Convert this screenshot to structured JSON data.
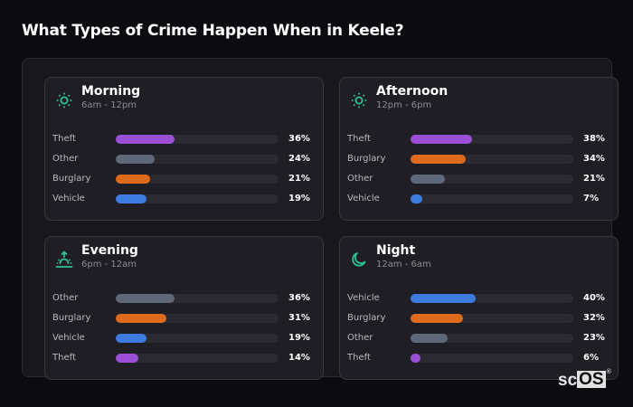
{
  "title": "What Types of Crime Happen When in Keele?",
  "colors": {
    "Theft": "#9b4fd6",
    "Other": "#5f6878",
    "Burglary": "#e06a1c",
    "Vehicle": "#3d7be0",
    "accent": "#2ec295"
  },
  "cards": [
    {
      "title": "Morning",
      "subtitle": "6am - 12pm",
      "icon": "sun-icon",
      "rows": [
        {
          "label": "Theft",
          "value": 36,
          "display": "36%"
        },
        {
          "label": "Other",
          "value": 24,
          "display": "24%"
        },
        {
          "label": "Burglary",
          "value": 21,
          "display": "21%"
        },
        {
          "label": "Vehicle",
          "value": 19,
          "display": "19%"
        }
      ]
    },
    {
      "title": "Afternoon",
      "subtitle": "12pm - 6pm",
      "icon": "sun-icon",
      "rows": [
        {
          "label": "Theft",
          "value": 38,
          "display": "38%"
        },
        {
          "label": "Burglary",
          "value": 34,
          "display": "34%"
        },
        {
          "label": "Other",
          "value": 21,
          "display": "21%"
        },
        {
          "label": "Vehicle",
          "value": 7,
          "display": "7%"
        }
      ]
    },
    {
      "title": "Evening",
      "subtitle": "6pm - 12am",
      "icon": "sunset-icon",
      "rows": [
        {
          "label": "Other",
          "value": 36,
          "display": "36%"
        },
        {
          "label": "Burglary",
          "value": 31,
          "display": "31%"
        },
        {
          "label": "Vehicle",
          "value": 19,
          "display": "19%"
        },
        {
          "label": "Theft",
          "value": 14,
          "display": "14%"
        }
      ]
    },
    {
      "title": "Night",
      "subtitle": "12am - 6am",
      "icon": "moon-icon",
      "rows": [
        {
          "label": "Vehicle",
          "value": 40,
          "display": "40%"
        },
        {
          "label": "Burglary",
          "value": 32,
          "display": "32%"
        },
        {
          "label": "Other",
          "value": 23,
          "display": "23%"
        },
        {
          "label": "Theft",
          "value": 6,
          "display": "6%"
        }
      ]
    }
  ],
  "brand": {
    "sc": "sc",
    "os": "OS",
    "reg": "®"
  },
  "chart_data": [
    {
      "type": "bar",
      "title": "Morning",
      "subtitle": "6am - 12pm",
      "orientation": "horizontal",
      "categories": [
        "Theft",
        "Other",
        "Burglary",
        "Vehicle"
      ],
      "values": [
        36,
        24,
        21,
        19
      ],
      "unit": "%",
      "xlim": [
        0,
        100
      ]
    },
    {
      "type": "bar",
      "title": "Afternoon",
      "subtitle": "12pm - 6pm",
      "orientation": "horizontal",
      "categories": [
        "Theft",
        "Burglary",
        "Other",
        "Vehicle"
      ],
      "values": [
        38,
        34,
        21,
        7
      ],
      "unit": "%",
      "xlim": [
        0,
        100
      ]
    },
    {
      "type": "bar",
      "title": "Evening",
      "subtitle": "6pm - 12am",
      "orientation": "horizontal",
      "categories": [
        "Other",
        "Burglary",
        "Vehicle",
        "Theft"
      ],
      "values": [
        36,
        31,
        19,
        14
      ],
      "unit": "%",
      "xlim": [
        0,
        100
      ]
    },
    {
      "type": "bar",
      "title": "Night",
      "subtitle": "12am - 6am",
      "orientation": "horizontal",
      "categories": [
        "Vehicle",
        "Burglary",
        "Other",
        "Theft"
      ],
      "values": [
        40,
        32,
        23,
        6
      ],
      "unit": "%",
      "xlim": [
        0,
        100
      ]
    }
  ]
}
